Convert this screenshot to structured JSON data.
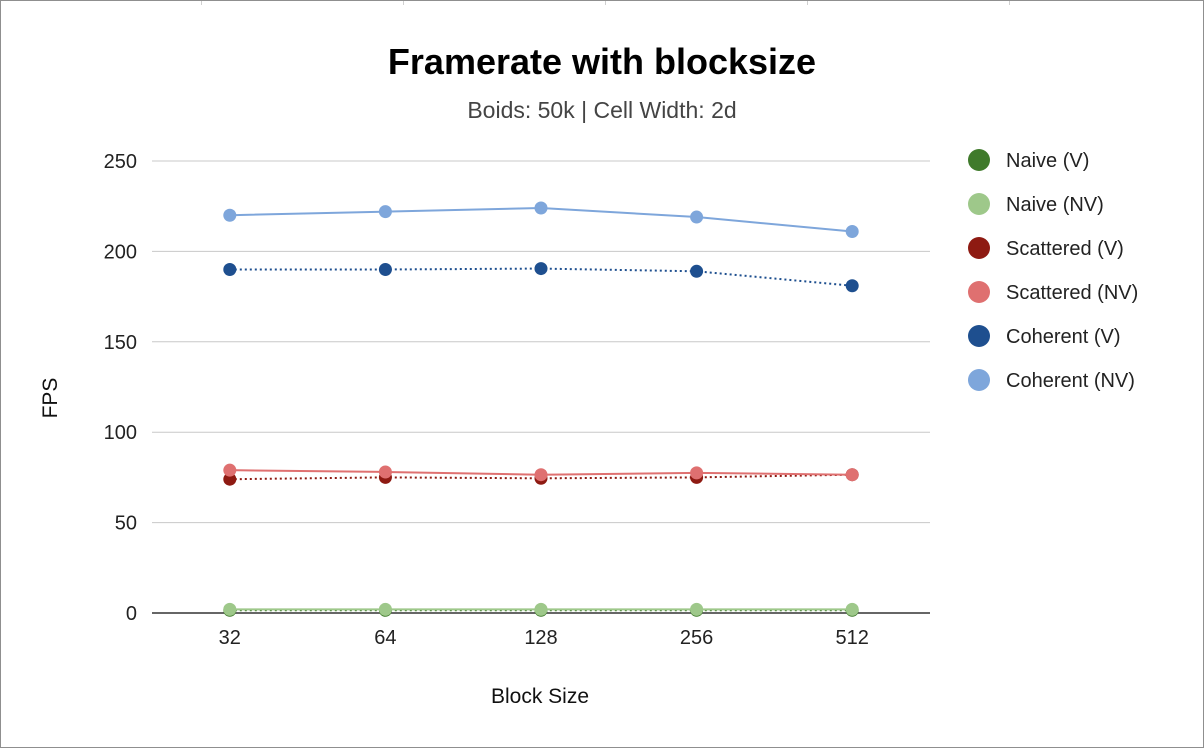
{
  "chart_data": {
    "type": "line",
    "title": "Framerate with blocksize",
    "subtitle": "Boids: 50k | Cell Width: 2d",
    "xlabel": "Block Size",
    "ylabel": "FPS",
    "categories": [
      "32",
      "64",
      "128",
      "256",
      "512"
    ],
    "ylim": [
      0,
      250
    ],
    "yticks": [
      0,
      50,
      100,
      150,
      200,
      250
    ],
    "grid": true,
    "legend_position": "right",
    "series": [
      {
        "name": "Naive (V)",
        "values": [
          1.5,
          1.5,
          1.5,
          1.5,
          1.5
        ],
        "color": "#3f7a2b",
        "style": "dotted"
      },
      {
        "name": "Naive (NV)",
        "values": [
          2,
          2,
          2,
          2,
          2
        ],
        "color": "#9ec88a",
        "style": "solid"
      },
      {
        "name": "Scattered (V)",
        "values": [
          74,
          75,
          74.5,
          75,
          76.5
        ],
        "color": "#8e1a12",
        "style": "dotted"
      },
      {
        "name": "Scattered (NV)",
        "values": [
          79,
          78,
          76.5,
          77.5,
          76.5
        ],
        "color": "#df7070",
        "style": "solid"
      },
      {
        "name": "Coherent (V)",
        "values": [
          190,
          190,
          190.5,
          189,
          181
        ],
        "color": "#1e4f8f",
        "style": "dotted"
      },
      {
        "name": "Coherent (NV)",
        "values": [
          220,
          222,
          224,
          219,
          211
        ],
        "color": "#7ea6db",
        "style": "solid"
      }
    ]
  }
}
